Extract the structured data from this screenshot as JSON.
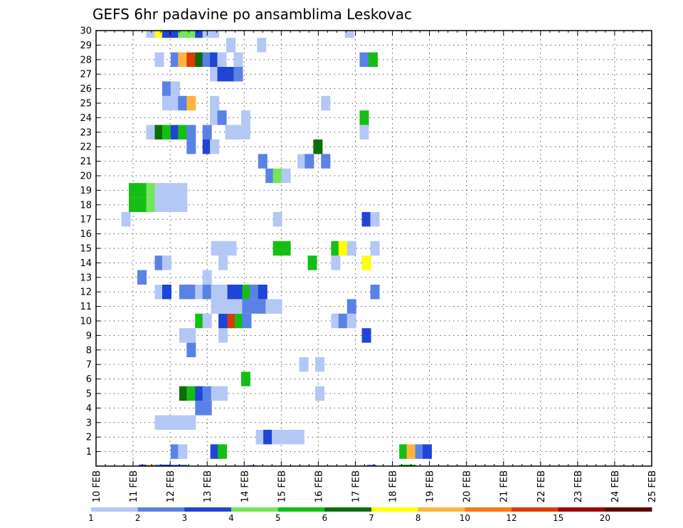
{
  "chart_data": {
    "type": "heatmap",
    "title": "GEFS 6hr padavine po ansamblima Leskovac",
    "x_categories": [
      "10 FEB",
      "11 FEB",
      "12 FEB",
      "13 FEB",
      "14 FEB",
      "15 FEB",
      "16 FEB",
      "17 FEB",
      "18 FEB",
      "19 FEB",
      "20 FEB",
      "21 FEB",
      "22 FEB",
      "23 FEB",
      "24 FEB",
      "25 FEB"
    ],
    "y_categories": [
      "1",
      "2",
      "3",
      "4",
      "5",
      "6",
      "7",
      "8",
      "9",
      "10",
      "11",
      "12",
      "13",
      "14",
      "15",
      "16",
      "17",
      "18",
      "19",
      "20",
      "21",
      "22",
      "23",
      "24",
      "25",
      "26",
      "27",
      "28",
      "29",
      "30"
    ],
    "ylim": [
      0,
      30
    ],
    "grid": true,
    "legend": {
      "position": "bottom",
      "labels": [
        "1",
        "2",
        "3",
        "4",
        "5",
        "6",
        "7",
        "8",
        "10",
        "12",
        "15",
        "20"
      ],
      "colors": [
        "#b4c8f5",
        "#5a82e6",
        "#1f45d6",
        "#73e65a",
        "#14be14",
        "#0a6e0a",
        "#ffff00",
        "#ffb43c",
        "#ff7814",
        "#dc3c00",
        "#a00000",
        "#640000"
      ]
    },
    "cells": [
      {
        "x": 2.98,
        "y": -0.4,
        "v": 3
      },
      {
        "x": 3.21,
        "y": -0.4,
        "v": 2
      },
      {
        "x": 3.41,
        "y": -0.4,
        "v": 6
      },
      {
        "x": 3.61,
        "y": -0.4,
        "v": 1
      },
      {
        "x": 11.28,
        "y": -0.4,
        "v": 3
      },
      {
        "x": 11.48,
        "y": -0.4,
        "v": 8
      },
      {
        "x": 11.71,
        "y": -0.4,
        "v": 2
      },
      {
        "x": 11.91,
        "y": -0.4,
        "v": 3
      },
      {
        "x": 12.14,
        "y": -0.4,
        "v": 2
      },
      {
        "x": 12.34,
        "y": -0.4,
        "v": 2
      },
      {
        "x": 14.21,
        "y": -0.4,
        "v": 1
      },
      {
        "x": 17.44,
        "y": -0.4,
        "v": 2
      },
      {
        "x": 18.31,
        "y": -0.4,
        "v": 5
      },
      {
        "x": 18.51,
        "y": -0.4,
        "v": 5
      },
      {
        "x": 2.98,
        "y": 1,
        "v": 5
      },
      {
        "x": 12.14,
        "y": 1,
        "v": 2
      },
      {
        "x": 12.34,
        "y": 1,
        "v": 1
      },
      {
        "x": 13.21,
        "y": 1,
        "v": 3
      },
      {
        "x": 13.41,
        "y": 1,
        "v": 5
      },
      {
        "x": 18.31,
        "y": 1,
        "v": 5
      },
      {
        "x": 18.51,
        "y": 1,
        "v": 8
      },
      {
        "x": 18.74,
        "y": 1,
        "v": 2
      },
      {
        "x": 18.94,
        "y": 1,
        "v": 3
      },
      {
        "x": 3.44,
        "y": 2,
        "v": 10
      },
      {
        "x": 3.64,
        "y": 2,
        "v": 5
      },
      {
        "x": 3.87,
        "y": 2,
        "v": 7
      },
      {
        "x": 4.07,
        "y": 2,
        "v": 3
      },
      {
        "x": 4.27,
        "y": 2,
        "v": 5
      },
      {
        "x": 4.5,
        "y": 2,
        "v": 2
      },
      {
        "x": 4.7,
        "y": 2,
        "v": 2
      },
      {
        "x": 14.44,
        "y": 2,
        "v": 1
      },
      {
        "x": 14.64,
        "y": 2,
        "v": 3
      },
      {
        "x": 14.87,
        "y": 2,
        "v": 1
      },
      {
        "x": 15.07,
        "y": 2,
        "v": 1
      },
      {
        "x": 15.27,
        "y": 2,
        "v": 1
      },
      {
        "x": 15.5,
        "y": 2,
        "v": 1
      },
      {
        "x": 3.44,
        "y": 3,
        "v": 1
      },
      {
        "x": 11.71,
        "y": 3,
        "v": 1
      },
      {
        "x": 11.91,
        "y": 3,
        "v": 1
      },
      {
        "x": 12.14,
        "y": 3,
        "v": 1
      },
      {
        "x": 12.37,
        "y": 3,
        "v": 1
      },
      {
        "x": 12.57,
        "y": 3,
        "v": 1
      },
      {
        "x": 3.44,
        "y": 4,
        "v": 2
      },
      {
        "x": 4.9,
        "y": 4,
        "v": 1
      },
      {
        "x": 5.13,
        "y": 4,
        "v": 1
      },
      {
        "x": 12.8,
        "y": 4,
        "v": 2
      },
      {
        "x": 13.0,
        "y": 4,
        "v": 2
      },
      {
        "x": 3.44,
        "y": 5,
        "v": 6
      },
      {
        "x": 3.64,
        "y": 5,
        "v": 5
      },
      {
        "x": 3.84,
        "y": 5,
        "v": 3
      },
      {
        "x": 12.37,
        "y": 5,
        "v": 6
      },
      {
        "x": 12.57,
        "y": 5,
        "v": 5
      },
      {
        "x": 12.8,
        "y": 5,
        "v": 3
      },
      {
        "x": 13.0,
        "y": 5,
        "v": 2
      },
      {
        "x": 13.23,
        "y": 5,
        "v": 1
      },
      {
        "x": 13.43,
        "y": 5,
        "v": 1
      },
      {
        "x": 16.04,
        "y": 5,
        "v": 1
      },
      {
        "x": 3.44,
        "y": 6,
        "v": 5
      },
      {
        "x": 3.64,
        "y": 6,
        "v": 15
      },
      {
        "x": 3.84,
        "y": 6,
        "v": 6
      },
      {
        "x": 4.07,
        "y": 6,
        "v": 1
      },
      {
        "x": 14.04,
        "y": 6,
        "v": 5
      },
      {
        "x": 3.01,
        "y": 7,
        "v": 1
      },
      {
        "x": 3.44,
        "y": 7,
        "v": 2
      },
      {
        "x": 15.61,
        "y": 7,
        "v": 1
      },
      {
        "x": 16.04,
        "y": 7,
        "v": 1
      },
      {
        "x": 4.9,
        "y": 8,
        "v": 1
      },
      {
        "x": 5.13,
        "y": 8,
        "v": 1
      },
      {
        "x": 12.57,
        "y": 8,
        "v": 2
      },
      {
        "x": 3.01,
        "y": 9,
        "v": 1
      },
      {
        "x": 3.24,
        "y": 9,
        "v": 2
      },
      {
        "x": 3.87,
        "y": 9,
        "v": 3
      },
      {
        "x": 4.7,
        "y": 9,
        "v": 1
      },
      {
        "x": 4.9,
        "y": 9,
        "v": 1
      },
      {
        "x": 12.37,
        "y": 9,
        "v": 1
      },
      {
        "x": 12.57,
        "y": 9,
        "v": 1
      },
      {
        "x": 13.43,
        "y": 9,
        "v": 1
      },
      {
        "x": 17.3,
        "y": 9,
        "v": 3
      },
      {
        "x": 3.44,
        "y": 10,
        "v": 8
      },
      {
        "x": 12.8,
        "y": 10,
        "v": 5
      },
      {
        "x": 13.0,
        "y": 10,
        "v": 1
      },
      {
        "x": 13.43,
        "y": 10,
        "v": 3
      },
      {
        "x": 13.67,
        "y": 10,
        "v": 10
      },
      {
        "x": 13.87,
        "y": 10,
        "v": 5
      },
      {
        "x": 14.07,
        "y": 10,
        "v": 2
      },
      {
        "x": 16.47,
        "y": 10,
        "v": 1
      },
      {
        "x": 16.67,
        "y": 10,
        "v": 2
      },
      {
        "x": 16.9,
        "y": 10,
        "v": 1
      },
      {
        "x": 3.44,
        "y": 11,
        "v": 6
      },
      {
        "x": 3.64,
        "y": 11,
        "v": 2
      },
      {
        "x": 3.84,
        "y": 11,
        "v": 8
      },
      {
        "x": 4.07,
        "y": 11,
        "v": 6
      },
      {
        "x": 13.23,
        "y": 11,
        "v": 1
      },
      {
        "x": 13.43,
        "y": 11,
        "v": 1
      },
      {
        "x": 13.67,
        "y": 11,
        "v": 1
      },
      {
        "x": 13.87,
        "y": 11,
        "v": 1
      },
      {
        "x": 14.07,
        "y": 11,
        "v": 2
      },
      {
        "x": 14.27,
        "y": 11,
        "v": 2
      },
      {
        "x": 14.5,
        "y": 11,
        "v": 2
      },
      {
        "x": 14.7,
        "y": 11,
        "v": 1
      },
      {
        "x": 14.9,
        "y": 11,
        "v": 1
      },
      {
        "x": 16.9,
        "y": 11,
        "v": 2
      },
      {
        "x": 3.01,
        "y": 12,
        "v": 1
      },
      {
        "x": 3.21,
        "y": 12,
        "v": 3
      },
      {
        "x": 3.44,
        "y": 12,
        "v": 1
      },
      {
        "x": 11.71,
        "y": 12,
        "v": 1
      },
      {
        "x": 11.91,
        "y": 12,
        "v": 3
      },
      {
        "x": 12.37,
        "y": 12,
        "v": 2
      },
      {
        "x": 12.57,
        "y": 12,
        "v": 2
      },
      {
        "x": 12.8,
        "y": 12,
        "v": 1
      },
      {
        "x": 13.0,
        "y": 12,
        "v": 2
      },
      {
        "x": 13.23,
        "y": 12,
        "v": 1
      },
      {
        "x": 13.43,
        "y": 12,
        "v": 1
      },
      {
        "x": 13.67,
        "y": 12,
        "v": 3
      },
      {
        "x": 13.87,
        "y": 12,
        "v": 3
      },
      {
        "x": 14.07,
        "y": 12,
        "v": 5
      },
      {
        "x": 14.27,
        "y": 12,
        "v": 2
      },
      {
        "x": 14.5,
        "y": 12,
        "v": 3
      },
      {
        "x": 17.53,
        "y": 12,
        "v": 2
      },
      {
        "x": 4.27,
        "y": 13,
        "v": 1
      },
      {
        "x": 11.24,
        "y": 13,
        "v": 2
      },
      {
        "x": 13.0,
        "y": 13,
        "v": 1
      },
      {
        "x": 3.24,
        "y": 14,
        "v": 2
      },
      {
        "x": 11.71,
        "y": 14,
        "v": 2
      },
      {
        "x": 11.91,
        "y": 14,
        "v": 1
      },
      {
        "x": 13.43,
        "y": 14,
        "v": 1
      },
      {
        "x": 15.84,
        "y": 14,
        "v": 5
      },
      {
        "x": 16.47,
        "y": 14,
        "v": 1
      },
      {
        "x": 17.3,
        "y": 14,
        "v": 7
      },
      {
        "x": 3.24,
        "y": 15,
        "v": 5
      },
      {
        "x": 13.23,
        "y": 15,
        "v": 1
      },
      {
        "x": 13.43,
        "y": 15,
        "v": 1
      },
      {
        "x": 13.67,
        "y": 15,
        "v": 1
      },
      {
        "x": 14.9,
        "y": 15,
        "v": 5
      },
      {
        "x": 15.13,
        "y": 15,
        "v": 5
      },
      {
        "x": 16.47,
        "y": 15,
        "v": 5
      },
      {
        "x": 16.67,
        "y": 15,
        "v": 7
      },
      {
        "x": 16.9,
        "y": 15,
        "v": 1
      },
      {
        "x": 17.53,
        "y": 15,
        "v": 1
      },
      {
        "x": 3.24,
        "y": 16,
        "v": 2
      },
      {
        "x": 3.44,
        "y": 16,
        "v": 1
      },
      {
        "x": 3.64,
        "y": 16,
        "v": 6
      },
      {
        "x": 3.84,
        "y": 16,
        "v": 2
      },
      {
        "x": 4.07,
        "y": 16,
        "v": 3
      },
      {
        "x": 4.27,
        "y": 16,
        "v": 1
      },
      {
        "x": 4.5,
        "y": 16,
        "v": 1
      },
      {
        "x": 4.7,
        "y": 16,
        "v": 1
      },
      {
        "x": 4.9,
        "y": 16,
        "v": 2
      },
      {
        "x": 5.13,
        "y": 16,
        "v": 3
      },
      {
        "x": 5.33,
        "y": 16,
        "v": 4
      },
      {
        "x": 5.76,
        "y": 16,
        "v": 1
      },
      {
        "x": 3.44,
        "y": 17,
        "v": 3
      },
      {
        "x": 3.64,
        "y": 17,
        "v": 1
      },
      {
        "x": 10.81,
        "y": 17,
        "v": 1
      },
      {
        "x": 14.9,
        "y": 17,
        "v": 1
      },
      {
        "x": 17.3,
        "y": 17,
        "v": 3
      },
      {
        "x": 17.53,
        "y": 17,
        "v": 1
      },
      {
        "x": 3.24,
        "y": 18,
        "v": 1
      },
      {
        "x": 3.44,
        "y": 18,
        "v": 1
      },
      {
        "x": 11.01,
        "y": 18,
        "v": 5
      },
      {
        "x": 11.24,
        "y": 18,
        "v": 5
      },
      {
        "x": 11.48,
        "y": 18,
        "v": 4
      },
      {
        "x": 11.71,
        "y": 18,
        "v": 1
      },
      {
        "x": 11.91,
        "y": 18,
        "v": 1
      },
      {
        "x": 12.14,
        "y": 18,
        "v": 1
      },
      {
        "x": 12.34,
        "y": 18,
        "v": 1
      },
      {
        "x": 3.44,
        "y": 19,
        "v": 3
      },
      {
        "x": 4.7,
        "y": 19,
        "v": 2
      },
      {
        "x": 4.9,
        "y": 19,
        "v": 5
      },
      {
        "x": 5.13,
        "y": 19,
        "v": 1
      },
      {
        "x": 11.01,
        "y": 19,
        "v": 5
      },
      {
        "x": 11.24,
        "y": 19,
        "v": 5
      },
      {
        "x": 11.48,
        "y": 19,
        "v": 4
      },
      {
        "x": 11.71,
        "y": 19,
        "v": 1
      },
      {
        "x": 11.91,
        "y": 19,
        "v": 1
      },
      {
        "x": 12.14,
        "y": 19,
        "v": 1
      },
      {
        "x": 12.34,
        "y": 19,
        "v": 1
      },
      {
        "x": 4.9,
        "y": 20,
        "v": 1
      },
      {
        "x": 14.7,
        "y": 20,
        "v": 2
      },
      {
        "x": 14.9,
        "y": 20,
        "v": 4
      },
      {
        "x": 15.13,
        "y": 20,
        "v": 1
      },
      {
        "x": 3.44,
        "y": 21,
        "v": 2
      },
      {
        "x": 14.5,
        "y": 21,
        "v": 2
      },
      {
        "x": 15.56,
        "y": 21,
        "v": 1
      },
      {
        "x": 15.76,
        "y": 21,
        "v": 2
      },
      {
        "x": 16.2,
        "y": 21,
        "v": 2
      },
      {
        "x": 3.44,
        "y": 22,
        "v": 2
      },
      {
        "x": 3.64,
        "y": 22,
        "v": 8
      },
      {
        "x": 4.27,
        "y": 22,
        "v": 2
      },
      {
        "x": 4.7,
        "y": 22,
        "v": 1
      },
      {
        "x": 12.57,
        "y": 22,
        "v": 2
      },
      {
        "x": 13.0,
        "y": 22,
        "v": 3
      },
      {
        "x": 13.2,
        "y": 22,
        "v": 1
      },
      {
        "x": 15.99,
        "y": 22,
        "v": 6
      },
      {
        "x": 3.44,
        "y": 23,
        "v": 1
      },
      {
        "x": 11.48,
        "y": 23,
        "v": 1
      },
      {
        "x": 11.71,
        "y": 23,
        "v": 6
      },
      {
        "x": 11.91,
        "y": 23,
        "v": 5
      },
      {
        "x": 12.14,
        "y": 23,
        "v": 3
      },
      {
        "x": 12.34,
        "y": 23,
        "v": 5
      },
      {
        "x": 12.57,
        "y": 23,
        "v": 2
      },
      {
        "x": 13.0,
        "y": 23,
        "v": 2
      },
      {
        "x": 13.61,
        "y": 23,
        "v": 1
      },
      {
        "x": 13.84,
        "y": 23,
        "v": 1
      },
      {
        "x": 14.04,
        "y": 23,
        "v": 1
      },
      {
        "x": 17.24,
        "y": 23,
        "v": 1
      },
      {
        "x": 3.24,
        "y": 24,
        "v": 2
      },
      {
        "x": 3.44,
        "y": 24,
        "v": 12
      },
      {
        "x": 3.64,
        "y": 24,
        "v": 6
      },
      {
        "x": 13.2,
        "y": 24,
        "v": 1
      },
      {
        "x": 13.4,
        "y": 24,
        "v": 2
      },
      {
        "x": 14.04,
        "y": 24,
        "v": 1
      },
      {
        "x": 17.24,
        "y": 24,
        "v": 5
      },
      {
        "x": 3.64,
        "y": 25,
        "v": 3
      },
      {
        "x": 11.91,
        "y": 25,
        "v": 1
      },
      {
        "x": 12.14,
        "y": 25,
        "v": 1
      },
      {
        "x": 12.34,
        "y": 25,
        "v": 2
      },
      {
        "x": 12.57,
        "y": 25,
        "v": 8
      },
      {
        "x": 13.2,
        "y": 25,
        "v": 1
      },
      {
        "x": 16.2,
        "y": 25,
        "v": 1
      },
      {
        "x": 3.01,
        "y": 26,
        "v": 2
      },
      {
        "x": 11.91,
        "y": 26,
        "v": 2
      },
      {
        "x": 12.14,
        "y": 26,
        "v": 1
      },
      {
        "x": 13.2,
        "y": 27,
        "v": 1
      },
      {
        "x": 13.4,
        "y": 27,
        "v": 3
      },
      {
        "x": 13.64,
        "y": 27,
        "v": 3
      },
      {
        "x": 13.84,
        "y": 27,
        "v": 2
      },
      {
        "x": 11.71,
        "y": 28,
        "v": 1
      },
      {
        "x": 12.14,
        "y": 28,
        "v": 2
      },
      {
        "x": 12.34,
        "y": 28,
        "v": 8
      },
      {
        "x": 12.57,
        "y": 28,
        "v": 10
      },
      {
        "x": 12.8,
        "y": 28,
        "v": 6
      },
      {
        "x": 13.0,
        "y": 28,
        "v": 2
      },
      {
        "x": 13.2,
        "y": 28,
        "v": 3
      },
      {
        "x": 13.4,
        "y": 28,
        "v": 1
      },
      {
        "x": 13.84,
        "y": 28,
        "v": 1
      },
      {
        "x": 17.24,
        "y": 28,
        "v": 2
      },
      {
        "x": 17.48,
        "y": 28,
        "v": 5
      },
      {
        "x": 3.01,
        "y": 29,
        "v": 1
      },
      {
        "x": 3.21,
        "y": 29,
        "v": 1
      },
      {
        "x": 13.64,
        "y": 29,
        "v": 1
      },
      {
        "x": 14.47,
        "y": 29,
        "v": 1
      },
      {
        "x": 3.44,
        "y": 30,
        "v": 1
      },
      {
        "x": 11.48,
        "y": 30,
        "v": 1
      },
      {
        "x": 11.71,
        "y": 30,
        "v": 7
      },
      {
        "x": 11.91,
        "y": 30,
        "v": 3
      },
      {
        "x": 12.14,
        "y": 30,
        "v": 3
      },
      {
        "x": 12.34,
        "y": 30,
        "v": 4
      },
      {
        "x": 12.57,
        "y": 30,
        "v": 4
      },
      {
        "x": 12.8,
        "y": 30,
        "v": 3
      },
      {
        "x": 13.0,
        "y": 30,
        "v": 1
      },
      {
        "x": 13.2,
        "y": 30,
        "v": 1
      },
      {
        "x": 16.84,
        "y": 30,
        "v": 1
      }
    ]
  }
}
